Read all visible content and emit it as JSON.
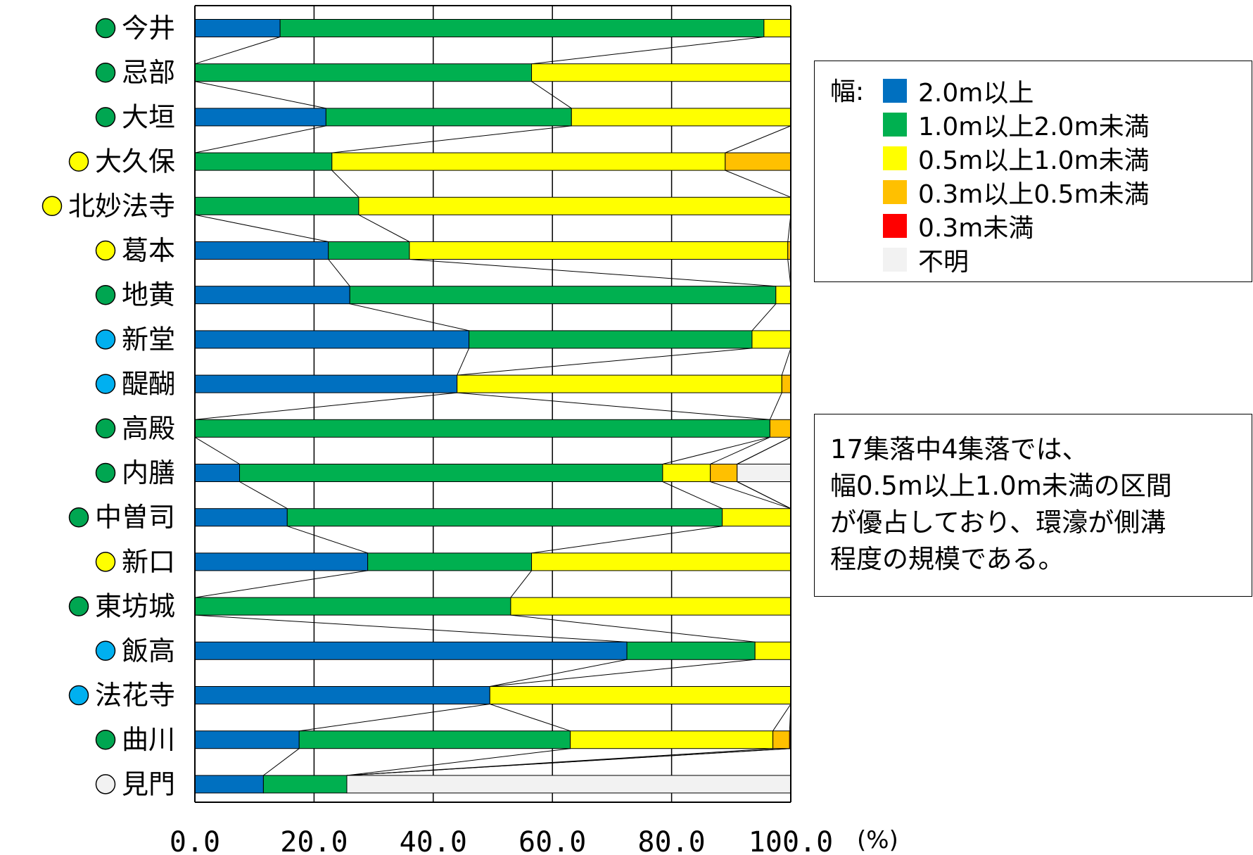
{
  "chart_data": {
    "type": "bar",
    "orientation": "horizontal",
    "stacked": true,
    "title": "",
    "xlabel": "",
    "ylabel": "",
    "xlim": [
      0,
      100
    ],
    "x_unit": "(%)",
    "x_ticks": [
      "0.0",
      "20.0",
      "40.0",
      "60.0",
      "80.0",
      "100.0"
    ],
    "grid": "vertical",
    "legend_position": "right",
    "categories": [
      "今井",
      "忌部",
      "大垣",
      "大久保",
      "北妙法寺",
      "葛本",
      "地黄",
      "新堂",
      "醍醐",
      "高殿",
      "内膳",
      "中曽司",
      "新口",
      "東坊城",
      "飯高",
      "法花寺",
      "曲川",
      "見門"
    ],
    "category_marker_colors": [
      "#00a651",
      "#00a651",
      "#00a651",
      "#ffff00",
      "#ffff00",
      "#ffff00",
      "#00a651",
      "#00b0f0",
      "#00b0f0",
      "#00a651",
      "#00a651",
      "#00a651",
      "#ffff00",
      "#00a651",
      "#00b0f0",
      "#00b0f0",
      "#00a651",
      "#f2f2f2"
    ],
    "series": [
      {
        "name": "2.0m以上",
        "color": "#0070c0",
        "values": [
          14.3,
          0,
          22,
          0,
          0,
          22.4,
          26,
          46,
          44,
          0,
          7.5,
          15.5,
          29,
          0,
          72.5,
          49.5,
          17.5,
          11.5
        ]
      },
      {
        "name": "1.0m以上2.0m未満",
        "color": "#00b050",
        "values": [
          81.2,
          56.5,
          41.2,
          23,
          27.5,
          13.6,
          71.5,
          47.5,
          0,
          96.5,
          71,
          73,
          27.5,
          53,
          21.5,
          0,
          45.5,
          14
        ]
      },
      {
        "name": "0.5m以上1.0m未満",
        "color": "#ffff00",
        "values": [
          4.5,
          43.5,
          36.8,
          66,
          72.5,
          63.5,
          2.5,
          6.5,
          54.5,
          0,
          8,
          11.5,
          43.5,
          47,
          6,
          50.5,
          34,
          0
        ]
      },
      {
        "name": "0.3m以上0.5m未満",
        "color": "#ffc000",
        "values": [
          0,
          0,
          0,
          11,
          0,
          0.5,
          0,
          0,
          1.5,
          3.5,
          4.5,
          0,
          0,
          0,
          0,
          0,
          2.8,
          0
        ]
      },
      {
        "name": "0.3m未満",
        "color": "#ff0000",
        "values": [
          0,
          0,
          0,
          0,
          0,
          0,
          0,
          0,
          0,
          0,
          0,
          0,
          0,
          0,
          0,
          0,
          0.2,
          0
        ]
      },
      {
        "name": "不明",
        "color": "#f2f2f2",
        "values": [
          0,
          0,
          0,
          0,
          0,
          0,
          0,
          0,
          0,
          0,
          9,
          0,
          0,
          0,
          0,
          0,
          0,
          74.5
        ]
      }
    ]
  },
  "legend": {
    "title": "幅:"
  },
  "note": {
    "lines": [
      "17集落中4集落では、",
      "幅0.5m以上1.0m未満の区間",
      "が優占しており、環濠が側溝",
      "程度の規模である。"
    ]
  }
}
